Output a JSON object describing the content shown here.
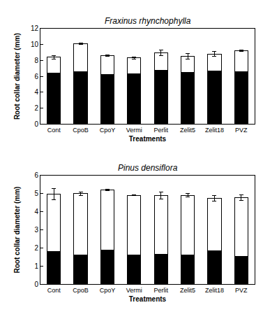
{
  "chart_data": [
    {
      "type": "bar",
      "title": "Fraxinus rhynchophylla",
      "stacked": true,
      "x_label": "Treatments",
      "y_label": "Root collar diameter (mm)",
      "categories": [
        "Cont",
        "CpoB",
        "CpoY",
        "Vermi",
        "Perlit",
        "Zelit5",
        "Zelit18",
        "PVZ"
      ],
      "series": [
        {
          "color": "#000000",
          "values": [
            6.4,
            6.6,
            6.2,
            6.3,
            6.8,
            6.5,
            6.7,
            6.6
          ],
          "errors": [
            0.3,
            0.15,
            0.2,
            0.05,
            0.2,
            0.25,
            0.3,
            0.1
          ]
        },
        {
          "color": "#ffffff",
          "values": [
            2.0,
            3.5,
            2.4,
            2.0,
            2.2,
            2.0,
            2.1,
            2.6
          ],
          "errors": [
            0.2,
            0.1,
            0.1,
            0.1,
            0.35,
            0.35,
            0.3,
            0.1
          ]
        }
      ],
      "ylim": [
        0,
        12
      ],
      "yticks": [
        0,
        2,
        4,
        6,
        8,
        10,
        12
      ],
      "grid": false
    },
    {
      "type": "bar",
      "title": "Pinus densiflora",
      "stacked": true,
      "x_label": "Treatments",
      "y_label": "Root collar diameter (mm)",
      "categories": [
        "Cont",
        "CpoB",
        "CpoY",
        "Vermi",
        "Perlit",
        "Zelit5",
        "Zelit18",
        "PVZ"
      ],
      "series": [
        {
          "color": "#000000",
          "values": [
            1.8,
            1.6,
            1.9,
            1.6,
            1.65,
            1.6,
            1.85,
            1.55
          ],
          "errors": [
            0.05,
            0.05,
            0.15,
            0.1,
            0.05,
            0.15,
            0.1,
            0.05
          ]
        },
        {
          "color": "#ffffff",
          "values": [
            3.17,
            3.4,
            3.3,
            3.3,
            3.25,
            3.3,
            2.9,
            3.23
          ],
          "errors": [
            0.3,
            0.1,
            0.05,
            0.02,
            0.2,
            0.1,
            0.15,
            0.15
          ]
        }
      ],
      "ylim": [
        0,
        6
      ],
      "yticks": [
        0,
        1,
        2,
        3,
        4,
        5,
        6
      ],
      "grid": false
    }
  ]
}
